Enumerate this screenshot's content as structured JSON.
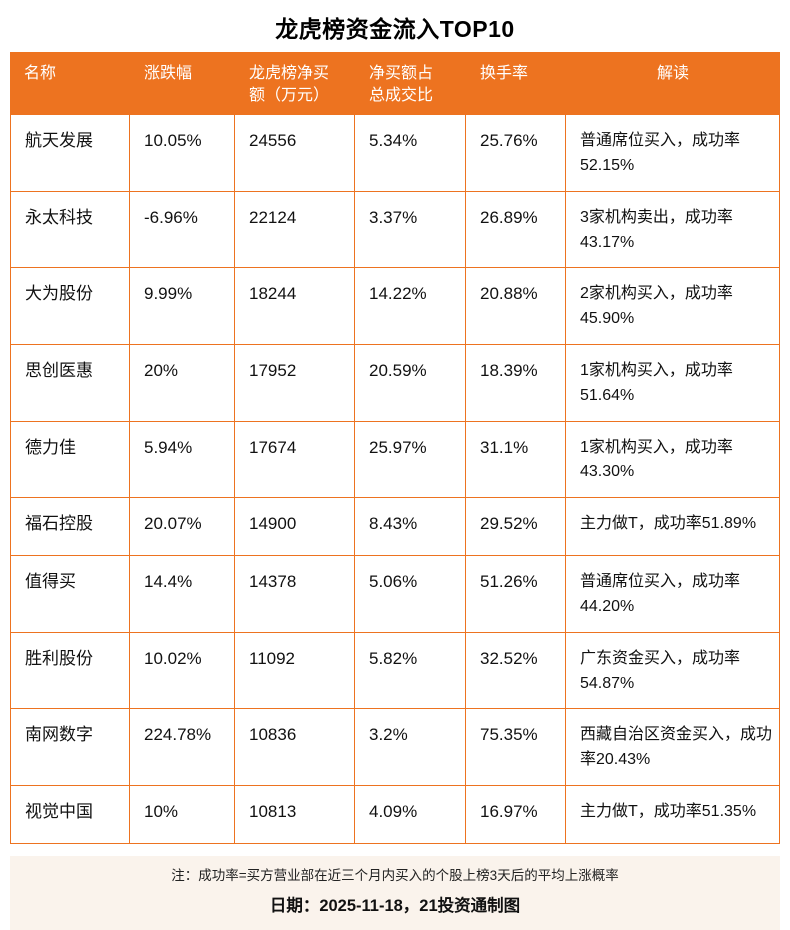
{
  "title": "龙虎榜资金流入TOP10",
  "chart_data": {
    "type": "table",
    "title": "龙虎榜资金流入TOP10",
    "columns": [
      "名称",
      "涨跌幅",
      "龙虎榜净买额（万元）",
      "净买额占总成交比",
      "换手率",
      "解读"
    ],
    "rows": [
      {
        "name": "航天发展",
        "change": "10.05%",
        "net_buy": "24556",
        "ratio": "5.34%",
        "turnover": "25.76%",
        "note": "普通席位买入，成功率52.15%"
      },
      {
        "name": "永太科技",
        "change": "-6.96%",
        "net_buy": "22124",
        "ratio": "3.37%",
        "turnover": "26.89%",
        "note": "3家机构卖出，成功率43.17%"
      },
      {
        "name": "大为股份",
        "change": "9.99%",
        "net_buy": "18244",
        "ratio": "14.22%",
        "turnover": "20.88%",
        "note": "2家机构买入，成功率45.90%"
      },
      {
        "name": "思创医惠",
        "change": "20%",
        "net_buy": "17952",
        "ratio": "20.59%",
        "turnover": "18.39%",
        "note": "1家机构买入，成功率51.64%"
      },
      {
        "name": "德力佳",
        "change": "5.94%",
        "net_buy": "17674",
        "ratio": "25.97%",
        "turnover": "31.1%",
        "note": "1家机构买入，成功率43.30%"
      },
      {
        "name": "福石控股",
        "change": "20.07%",
        "net_buy": "14900",
        "ratio": "8.43%",
        "turnover": "29.52%",
        "note": "主力做T，成功率51.89%"
      },
      {
        "name": "值得买",
        "change": "14.4%",
        "net_buy": "14378",
        "ratio": "5.06%",
        "turnover": "51.26%",
        "note": "普通席位买入，成功率44.20%"
      },
      {
        "name": "胜利股份",
        "change": "10.02%",
        "net_buy": "11092",
        "ratio": "5.82%",
        "turnover": "32.52%",
        "note": "广东资金买入，成功率54.87%"
      },
      {
        "name": "南网数字",
        "change": "224.78%",
        "net_buy": "10836",
        "ratio": "3.2%",
        "turnover": "75.35%",
        "note": "西藏自治区资金买入，成功率20.43%"
      },
      {
        "name": "视觉中国",
        "change": "10%",
        "net_buy": "10813",
        "ratio": "4.09%",
        "turnover": "16.97%",
        "note": "主力做T，成功率51.35%"
      }
    ]
  },
  "footer": {
    "note": "注：成功率=买方营业部在近三个月内买入的个股上榜3天后的平均上涨概率",
    "date": "日期：2025-11-18，21投资通制图"
  },
  "colors": {
    "accent": "#ED7320",
    "footer_bg": "#FAF3EC",
    "header_text": "#FFFFFF"
  }
}
